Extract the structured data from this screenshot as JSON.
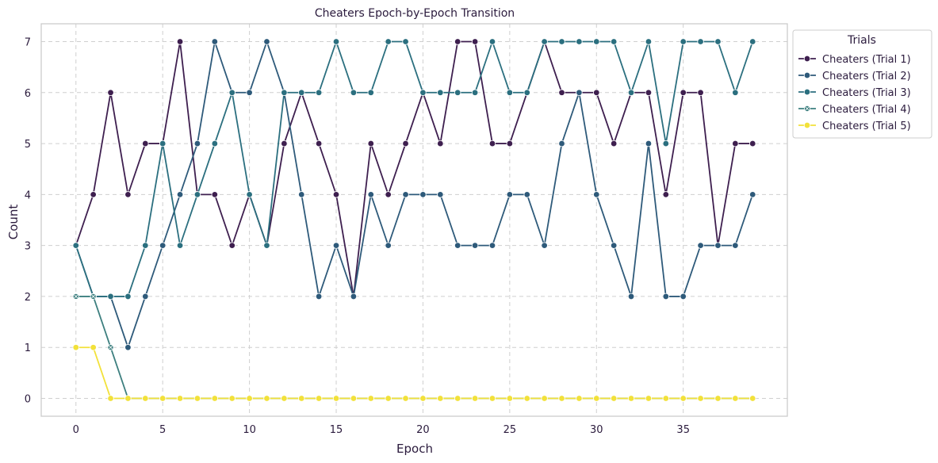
{
  "chart_data": {
    "type": "line",
    "title": "Cheaters Epoch-by-Epoch Transition",
    "xlabel": "Epoch",
    "ylabel": "Count",
    "xlim": [
      -2,
      41
    ],
    "ylim": [
      -0.35,
      7.35
    ],
    "xticks": [
      0,
      5,
      10,
      15,
      20,
      25,
      30,
      35
    ],
    "yticks": [
      0,
      1,
      2,
      3,
      4,
      5,
      6,
      7
    ],
    "grid": true,
    "legend_title": "Trials",
    "legend_position": "upper right, outside plot",
    "x": [
      0,
      1,
      2,
      3,
      4,
      5,
      6,
      7,
      8,
      9,
      10,
      11,
      12,
      13,
      14,
      15,
      16,
      17,
      18,
      19,
      20,
      21,
      22,
      23,
      24,
      25,
      26,
      27,
      28,
      29,
      30,
      31,
      32,
      33,
      34,
      35,
      36,
      37,
      38,
      39
    ],
    "series": [
      {
        "name": "Cheaters (Trial 1)",
        "color": "#3e1f4f",
        "marker": "circle",
        "values": [
          3,
          4,
          6,
          4,
          5,
          5,
          7,
          4,
          4,
          3,
          4,
          3,
          5,
          6,
          5,
          4,
          2,
          5,
          4,
          5,
          6,
          5,
          7,
          7,
          5,
          5,
          6,
          7,
          6,
          6,
          6,
          5,
          6,
          6,
          4,
          6,
          6,
          3,
          5,
          5
        ]
      },
      {
        "name": "Cheaters (Trial 2)",
        "color": "#2e5a7a",
        "marker": "circle",
        "values": [
          3,
          2,
          2,
          1,
          2,
          3,
          4,
          5,
          7,
          6,
          6,
          7,
          6,
          4,
          2,
          3,
          2,
          4,
          3,
          4,
          4,
          4,
          3,
          3,
          3,
          4,
          4,
          3,
          5,
          6,
          4,
          3,
          2,
          5,
          2,
          2,
          3,
          3,
          3,
          4
        ]
      },
      {
        "name": "Cheaters (Trial 3)",
        "color": "#2b6f7f",
        "marker": "circle",
        "values": [
          3,
          2,
          2,
          2,
          3,
          5,
          3,
          4,
          5,
          6,
          4,
          3,
          6,
          6,
          6,
          7,
          6,
          6,
          7,
          7,
          6,
          6,
          6,
          6,
          7,
          6,
          6,
          7,
          7,
          7,
          7,
          7,
          6,
          7,
          5,
          7,
          7,
          7,
          6,
          7
        ]
      },
      {
        "name": "Cheaters (Trial 4)",
        "color": "#3d7f7f",
        "marker": "x-circle",
        "values": [
          2,
          2,
          1,
          0,
          0,
          0,
          0,
          0,
          0,
          0,
          0,
          0,
          0,
          0,
          0,
          0,
          0,
          0,
          0,
          0,
          0,
          0,
          0,
          0,
          0,
          0,
          0,
          0,
          0,
          0,
          0,
          0,
          0,
          0,
          0,
          0,
          0,
          0,
          0,
          0
        ]
      },
      {
        "name": "Cheaters (Trial 5)",
        "color": "#f2e13a",
        "marker": "circle",
        "values": [
          1,
          1,
          0,
          0,
          0,
          0,
          0,
          0,
          0,
          0,
          0,
          0,
          0,
          0,
          0,
          0,
          0,
          0,
          0,
          0,
          0,
          0,
          0,
          0,
          0,
          0,
          0,
          0,
          0,
          0,
          0,
          0,
          0,
          0,
          0,
          0,
          0,
          0,
          0,
          0
        ]
      }
    ]
  }
}
